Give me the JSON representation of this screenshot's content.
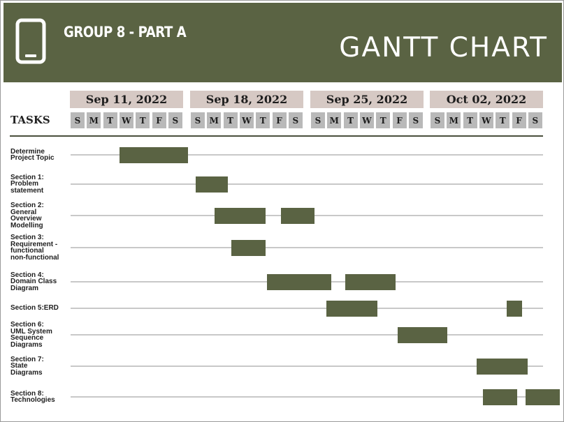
{
  "header": {
    "group_title": "GROUP 8 - PART A",
    "chart_title": "GANTT CHART",
    "icon": "smartphone-icon",
    "background_color": "#5a6343",
    "text_color": "#ffffff"
  },
  "tasks_title": "TASKS",
  "chart_data": {
    "type": "gantt",
    "title": "GANTT CHART",
    "weeks": [
      "Sep 11, 2022",
      "Sep 18, 2022",
      "Sep 25, 2022",
      "Oct 02, 2022"
    ],
    "day_letters": [
      "S",
      "M",
      "T",
      "W",
      "T",
      "F",
      "S"
    ],
    "bar_color": "#5a6343",
    "tasks": [
      {
        "label": "Determine\nProject Topic",
        "segments": [
          [
            2.9,
            6.9
          ]
        ]
      },
      {
        "label": "Section 1:\nProblem\nstatement",
        "segments": [
          [
            7.3,
            9.2
          ]
        ]
      },
      {
        "label": "Section 2:\nGeneral\nOverview\nModelling",
        "segments": [
          [
            8.4,
            11.4
          ],
          [
            12.3,
            14.2
          ]
        ]
      },
      {
        "label": "Section 3:\nRequirement -\nfunctional\nnon-functional",
        "segments": [
          [
            9.4,
            11.4
          ]
        ]
      },
      {
        "label": "Section 4:\nDomain Class\nDiagram",
        "segments": [
          [
            11.5,
            15.2
          ],
          [
            16.0,
            19.0
          ]
        ]
      },
      {
        "label": "Section 5:ERD",
        "segments": [
          [
            14.9,
            17.9
          ],
          [
            25.5,
            26.4
          ]
        ]
      },
      {
        "label": "Section 6:\nUML System\nSequence\nDiagrams",
        "segments": [
          [
            19.1,
            22.0
          ]
        ]
      },
      {
        "label": "Section 7:\nState\nDiagrams",
        "segments": [
          [
            23.7,
            26.7
          ]
        ]
      },
      {
        "label": "Section 8:\nTechnologies",
        "segments": [
          [
            24.1,
            26.1
          ],
          [
            26.6,
            28.6
          ]
        ]
      }
    ]
  }
}
